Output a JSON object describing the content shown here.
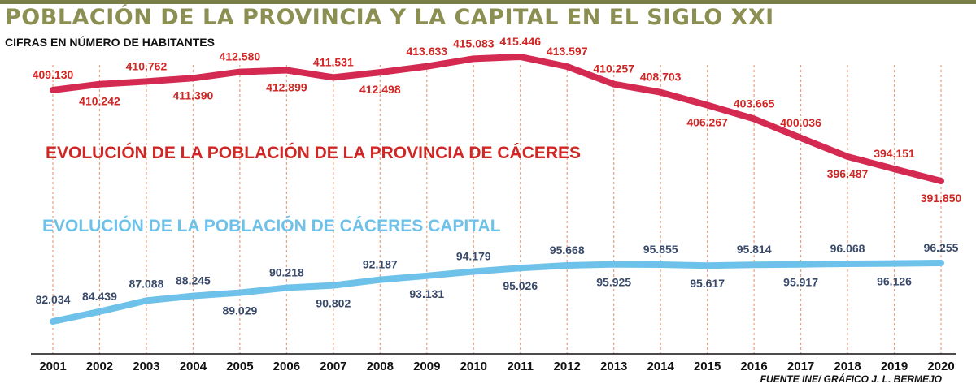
{
  "header": {
    "title": "POBLACIÓN DE LA PROVINCIA Y LA CAPITAL EN EL SIGLO XXI",
    "subtitle": "CIFRAS EN NÚMERO DE HABITANTES",
    "source": "FUENTE INE/ GRÁFICO J. L. BERMEJO"
  },
  "colors": {
    "title": "#8c8f52",
    "province": "#d42a52",
    "province_text": "#d02624",
    "capital": "#6ec2ea",
    "capital_text": "#3a4a6a",
    "grid": "#e8a080"
  },
  "chart_data": {
    "type": "line",
    "title": "POBLACIÓN DE LA PROVINCIA Y LA CAPITAL EN EL SIGLO XXI",
    "subtitle": "CIFRAS EN NÚMERO DE HABITANTES",
    "x": [
      2001,
      2002,
      2003,
      2004,
      2005,
      2006,
      2007,
      2008,
      2009,
      2010,
      2011,
      2012,
      2013,
      2014,
      2015,
      2016,
      2017,
      2018,
      2019,
      2020
    ],
    "series": [
      {
        "name": "EVOLUCIÓN DE LA POBLACIÓN DE LA PROVINCIA DE CÁCERES",
        "values": [
          409130,
          410242,
          410762,
          411390,
          412580,
          412899,
          411531,
          412498,
          413633,
          415083,
          415446,
          413597,
          410257,
          408703,
          406267,
          403665,
          400036,
          396487,
          394151,
          391850
        ],
        "labels": [
          "409.130",
          "410.242",
          "410.762",
          "411.390",
          "412.580",
          "412.899",
          "411.531",
          "412.498",
          "413.633",
          "415.083",
          "415.446",
          "413.597",
          "410.257",
          "408.703",
          "406.267",
          "403.665",
          "400.036",
          "396.487",
          "394.151",
          "391.850"
        ]
      },
      {
        "name": "EVOLUCIÓN DE LA POBLACIÓN DE CÁCERES CAPITAL",
        "values": [
          82034,
          84439,
          87088,
          88245,
          89029,
          90218,
          90802,
          92187,
          93131,
          94179,
          95026,
          95668,
          95925,
          95855,
          95617,
          95814,
          95917,
          96068,
          96126,
          96255
        ],
        "labels": [
          "82.034",
          "84.439",
          "87.088",
          "88.245",
          "89.029",
          "90.218",
          "90.802",
          "92.187",
          "93.131",
          "94.179",
          "95.026",
          "95.668",
          "95.925",
          "95.855",
          "95.617",
          "95.814",
          "95.917",
          "96.068",
          "96.126",
          "96.255"
        ]
      }
    ],
    "grid": true,
    "legend": "inline labels"
  }
}
